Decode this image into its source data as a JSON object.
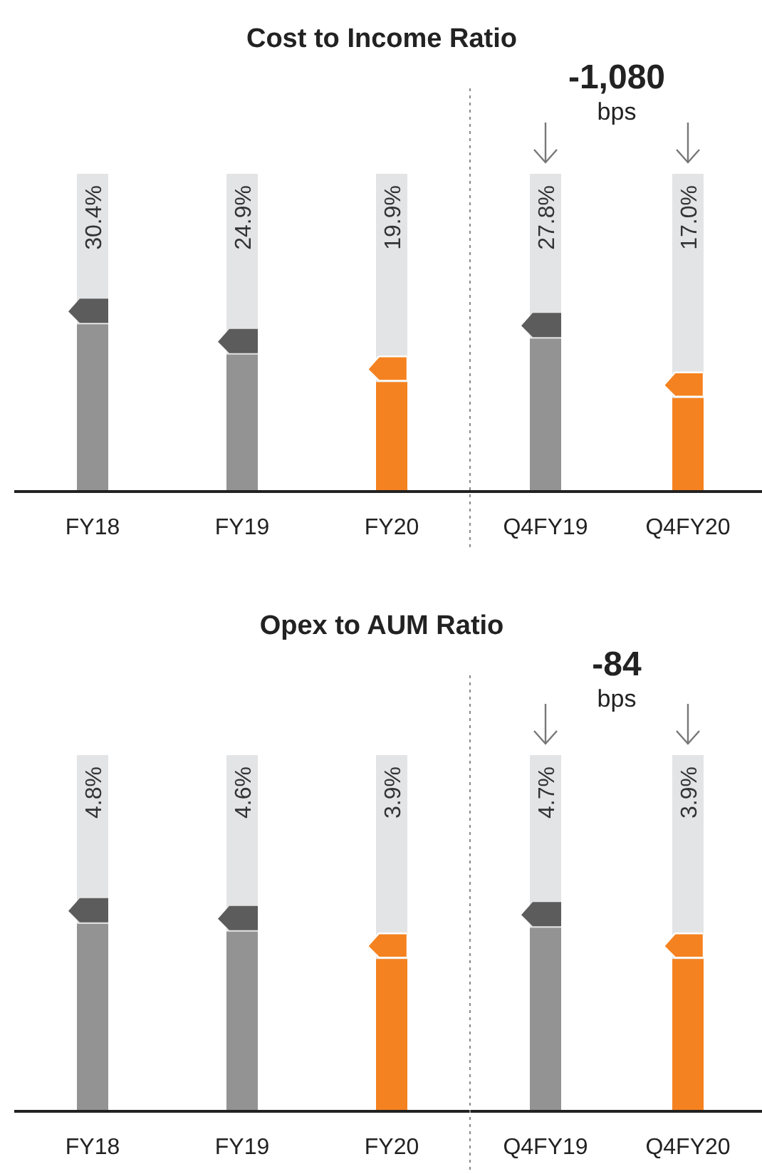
{
  "chart_data": [
    {
      "type": "bar",
      "title": "Cost to Income Ratio",
      "categories": [
        "FY18",
        "FY19",
        "FY20",
        "Q4FY19",
        "Q4FY20"
      ],
      "values": [
        30.4,
        24.9,
        19.9,
        27.8,
        17.0
      ],
      "value_labels": [
        "30.4%",
        "24.9%",
        "19.9%",
        "27.8%",
        "17.0%"
      ],
      "colors": [
        "#939393",
        "#939393",
        "#f58220",
        "#939393",
        "#f58220"
      ],
      "annotations": [
        "-1,080",
        "bps"
      ]
    },
    {
      "type": "bar",
      "title": "Opex to AUM Ratio",
      "categories": [
        "FY18",
        "FY19",
        "FY20",
        "Q4FY19",
        "Q4FY20"
      ],
      "values": [
        4.8,
        4.6,
        3.9,
        4.7,
        3.9
      ],
      "value_labels": [
        "4.8%",
        "4.6%",
        "3.9%",
        "4.7%",
        "3.9%"
      ],
      "colors": [
        "#939393",
        "#939393",
        "#f58220",
        "#939393",
        "#f58220"
      ],
      "annotations": [
        "-84",
        "bps"
      ]
    }
  ]
}
